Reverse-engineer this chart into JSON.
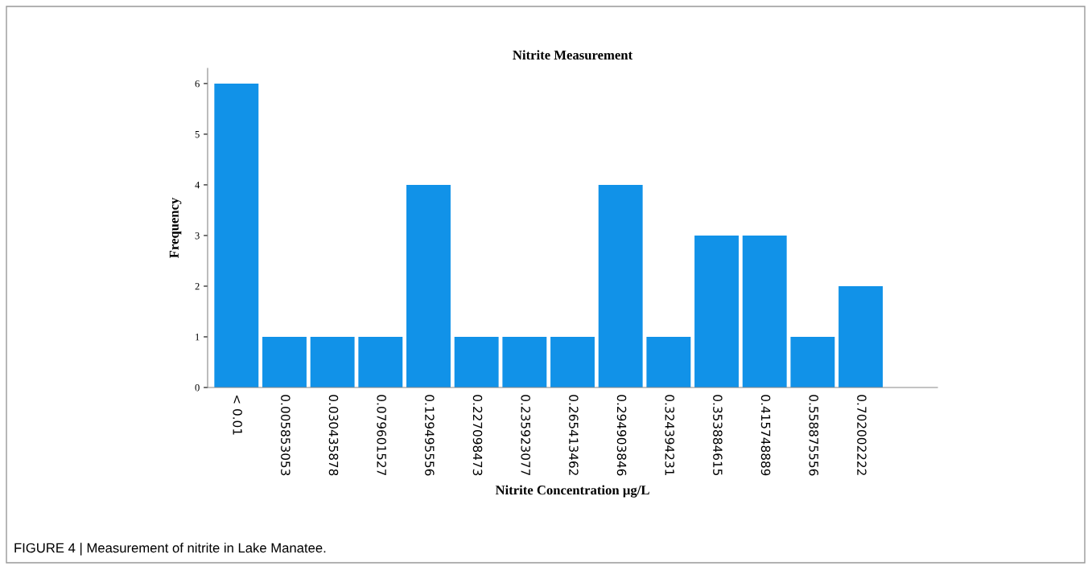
{
  "chart_data": {
    "type": "bar",
    "title": "Nitrite Measurement",
    "xlabel": "Nitrite Concentration µg/L",
    "ylabel": "Frequency",
    "categories": [
      "< 0.01",
      "0.005853053",
      "0.030435878",
      "0.079601527",
      "0.129495556",
      "0.227098473",
      "0.235923077",
      "0.265413462",
      "0.294903846",
      "0.324394231",
      "0.353884615",
      "0.415748889",
      "0.558875556",
      "0.702002222"
    ],
    "values": [
      6,
      1,
      1,
      1,
      4,
      1,
      1,
      1,
      4,
      1,
      3,
      3,
      1,
      2
    ],
    "color": "#1192e8",
    "ylim": [
      0,
      6.3
    ],
    "yticks": [
      0,
      1,
      2,
      3,
      4,
      5,
      6
    ],
    "grid": false,
    "annotations": [
      "FIGURE 4 | Measurement of nitrite in Lake Manatee."
    ]
  }
}
